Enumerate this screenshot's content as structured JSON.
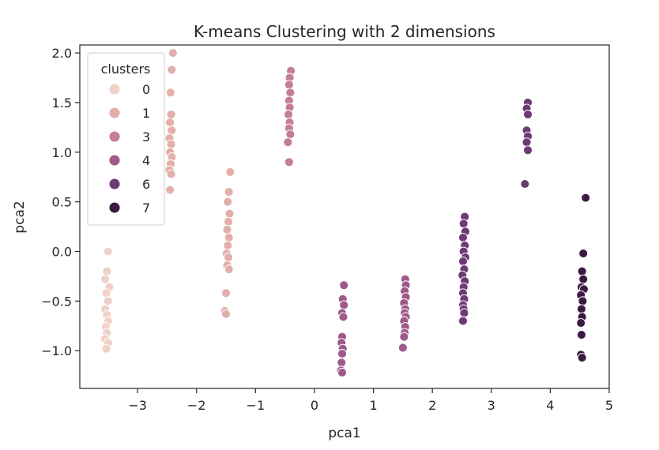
{
  "chart_data": {
    "type": "scatter",
    "title": "K-means Clustering with 2 dimensions",
    "xlabel": "pca1",
    "ylabel": "pca2",
    "xlim": [
      -3.98,
      5.0
    ],
    "ylim": [
      -1.38,
      2.08
    ],
    "xticks": [
      -3,
      -2,
      -1,
      0,
      1,
      2,
      3,
      4,
      5
    ],
    "yticks": [
      -1.0,
      -0.5,
      0.0,
      0.5,
      1.0,
      1.5,
      2.0
    ],
    "ytick_labels": [
      "−1.0",
      "−0.5",
      "0.0",
      "0.5",
      "1.0",
      "1.5",
      "2.0"
    ],
    "xtick_labels": [
      "−3",
      "−2",
      "−1",
      "0",
      "1",
      "2",
      "3",
      "4",
      "5"
    ],
    "grid": false,
    "legend": {
      "title": "clusters",
      "placement": "top-left"
    },
    "series": [
      {
        "name": "0",
        "color": "#f0d1c8",
        "points": [
          [
            -3.5,
            0.0
          ],
          [
            -3.52,
            -0.2
          ],
          [
            -3.55,
            -0.28
          ],
          [
            -3.48,
            -0.36
          ],
          [
            -3.53,
            -0.42
          ],
          [
            -3.5,
            -0.5
          ],
          [
            -3.55,
            -0.58
          ],
          [
            -3.52,
            -0.64
          ],
          [
            -3.5,
            -0.7
          ],
          [
            -3.54,
            -0.76
          ],
          [
            -3.52,
            -0.82
          ],
          [
            -3.55,
            -0.88
          ],
          [
            -3.5,
            -0.92
          ],
          [
            -3.53,
            -0.98
          ]
        ]
      },
      {
        "name": "1",
        "color": "#e2b0aa",
        "points": [
          [
            -2.4,
            2.0
          ],
          [
            -2.42,
            1.83
          ],
          [
            -2.44,
            1.6
          ],
          [
            -2.43,
            1.38
          ],
          [
            -2.45,
            1.3
          ],
          [
            -2.42,
            1.22
          ],
          [
            -2.46,
            1.14
          ],
          [
            -2.43,
            1.08
          ],
          [
            -2.45,
            1.0
          ],
          [
            -2.42,
            0.95
          ],
          [
            -2.44,
            0.88
          ],
          [
            -2.46,
            0.82
          ],
          [
            -2.43,
            0.78
          ],
          [
            -2.45,
            0.62
          ],
          [
            -1.43,
            0.8
          ],
          [
            -1.45,
            0.6
          ],
          [
            -1.47,
            0.5
          ],
          [
            -1.44,
            0.38
          ],
          [
            -1.46,
            0.3
          ],
          [
            -1.48,
            0.22
          ],
          [
            -1.45,
            0.14
          ],
          [
            -1.47,
            0.06
          ],
          [
            -1.49,
            -0.02
          ],
          [
            -1.46,
            -0.06
          ],
          [
            -1.48,
            -0.14
          ],
          [
            -1.45,
            -0.18
          ],
          [
            -1.5,
            -0.42
          ],
          [
            -1.52,
            -0.6
          ],
          [
            -1.5,
            -0.63
          ]
        ]
      },
      {
        "name": "3",
        "color": "#c47e95",
        "points": [
          [
            -0.4,
            1.82
          ],
          [
            -0.42,
            1.75
          ],
          [
            -0.43,
            1.68
          ],
          [
            -0.41,
            1.6
          ],
          [
            -0.43,
            1.52
          ],
          [
            -0.42,
            1.45
          ],
          [
            -0.44,
            1.38
          ],
          [
            -0.42,
            1.3
          ],
          [
            -0.43,
            1.24
          ],
          [
            -0.41,
            1.18
          ],
          [
            -0.45,
            1.1
          ],
          [
            -0.43,
            0.9
          ]
        ]
      },
      {
        "name": "4",
        "color": "#9e5a8a",
        "points": [
          [
            0.5,
            -0.34
          ],
          [
            0.48,
            -0.48
          ],
          [
            0.5,
            -0.54
          ],
          [
            0.47,
            -0.62
          ],
          [
            0.49,
            -0.66
          ],
          [
            0.47,
            -0.86
          ],
          [
            0.46,
            -0.92
          ],
          [
            0.48,
            -0.98
          ],
          [
            0.47,
            -1.03
          ],
          [
            0.46,
            -1.12
          ],
          [
            0.45,
            -1.2
          ],
          [
            0.47,
            -1.22
          ],
          [
            1.54,
            -0.28
          ],
          [
            1.55,
            -0.34
          ],
          [
            1.53,
            -0.4
          ],
          [
            1.55,
            -0.46
          ],
          [
            1.52,
            -0.52
          ],
          [
            1.54,
            -0.58
          ],
          [
            1.53,
            -0.62
          ],
          [
            1.55,
            -0.66
          ],
          [
            1.52,
            -0.7
          ],
          [
            1.54,
            -0.76
          ],
          [
            1.53,
            -0.82
          ],
          [
            1.52,
            -0.86
          ],
          [
            1.5,
            -0.97
          ]
        ]
      },
      {
        "name": "6",
        "color": "#6e3a76",
        "points": [
          [
            2.55,
            0.35
          ],
          [
            2.53,
            0.28
          ],
          [
            2.56,
            0.2
          ],
          [
            2.52,
            0.14
          ],
          [
            2.55,
            0.06
          ],
          [
            2.53,
            0.0
          ],
          [
            2.56,
            -0.06
          ],
          [
            2.52,
            -0.1
          ],
          [
            2.54,
            -0.18
          ],
          [
            2.51,
            -0.24
          ],
          [
            2.55,
            -0.3
          ],
          [
            2.53,
            -0.36
          ],
          [
            2.52,
            -0.42
          ],
          [
            2.54,
            -0.48
          ],
          [
            2.52,
            -0.54
          ],
          [
            2.53,
            -0.58
          ],
          [
            2.54,
            -0.62
          ],
          [
            2.52,
            -0.7
          ],
          [
            3.62,
            1.5
          ],
          [
            3.6,
            1.44
          ],
          [
            3.62,
            1.38
          ],
          [
            3.6,
            1.22
          ],
          [
            3.62,
            1.16
          ],
          [
            3.6,
            1.1
          ],
          [
            3.62,
            1.02
          ],
          [
            3.57,
            0.68
          ]
        ]
      },
      {
        "name": "7",
        "color": "#3d1a44",
        "points": [
          [
            4.6,
            0.54
          ],
          [
            4.56,
            -0.02
          ],
          [
            4.54,
            -0.2
          ],
          [
            4.56,
            -0.28
          ],
          [
            4.53,
            -0.36
          ],
          [
            4.57,
            -0.38
          ],
          [
            4.52,
            -0.44
          ],
          [
            4.55,
            -0.5
          ],
          [
            4.53,
            -0.58
          ],
          [
            4.54,
            -0.66
          ],
          [
            4.52,
            -0.72
          ],
          [
            4.53,
            -0.84
          ],
          [
            4.52,
            -1.04
          ],
          [
            4.54,
            -1.07
          ]
        ]
      }
    ]
  }
}
